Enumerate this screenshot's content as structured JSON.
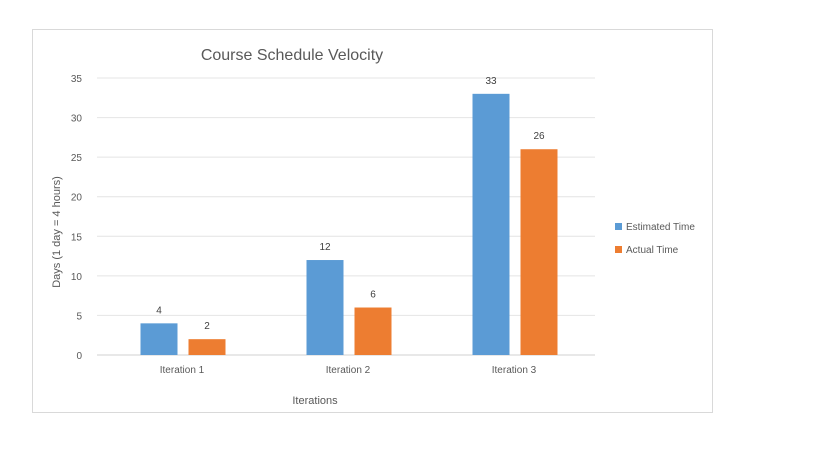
{
  "chart_data": {
    "type": "bar",
    "title": "Course Schedule Velocity",
    "xlabel": "Iterations",
    "ylabel": "Days (1 day = 4 hours)",
    "categories": [
      "Iteration 1",
      "Iteration 2",
      "Iteration 3"
    ],
    "series": [
      {
        "name": "Estimated Time",
        "values": [
          4,
          12,
          33
        ],
        "color": "#5b9bd5"
      },
      {
        "name": "Actual Time",
        "values": [
          2,
          6,
          26
        ],
        "color": "#ed7d31"
      }
    ],
    "ylim": [
      0,
      35
    ],
    "yticks": [
      0,
      5,
      10,
      15,
      20,
      25,
      30,
      35
    ],
    "grid": true,
    "legend_position": "right",
    "data_labels": true
  }
}
